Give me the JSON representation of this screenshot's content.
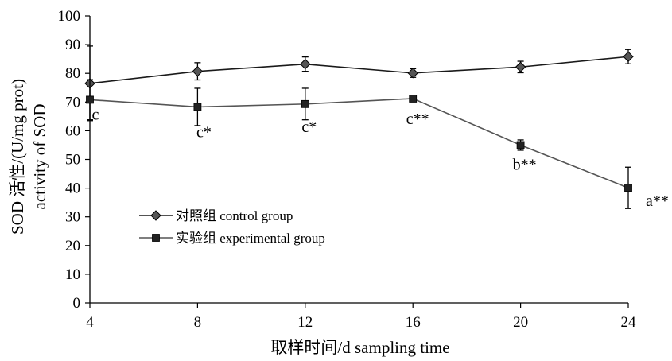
{
  "chart_data": {
    "type": "line",
    "title": "",
    "xlabel": "取样时间/d  sampling time",
    "ylabel_line1": "SOD 活性/(U/mg prot)",
    "ylabel_line2": "activity of SOD",
    "x": [
      4,
      8,
      12,
      16,
      20,
      24
    ],
    "xlim": [
      4,
      24
    ],
    "ylim": [
      0,
      100
    ],
    "yticks": [
      0,
      10,
      20,
      30,
      40,
      50,
      60,
      70,
      80,
      90,
      100
    ],
    "grid": false,
    "legend_position": "lower-left",
    "series": [
      {
        "name": "对照组 control group",
        "marker": "diamond",
        "color": "#1a1a1a",
        "values": [
          76.5,
          80.7,
          83.2,
          80.1,
          82.2,
          85.8
        ],
        "errors": [
          13.0,
          3.0,
          2.5,
          1.5,
          2.0,
          2.5
        ]
      },
      {
        "name": "实验组 experimental group",
        "marker": "square",
        "color": "#555555",
        "values": [
          70.8,
          68.3,
          69.3,
          71.2,
          55.0,
          40.1
        ],
        "errors": [
          7.0,
          6.5,
          5.5,
          0.7,
          1.8,
          7.2
        ],
        "annotations": [
          "c",
          "c*",
          "c*",
          "c**",
          "b**",
          "a**"
        ]
      }
    ]
  }
}
